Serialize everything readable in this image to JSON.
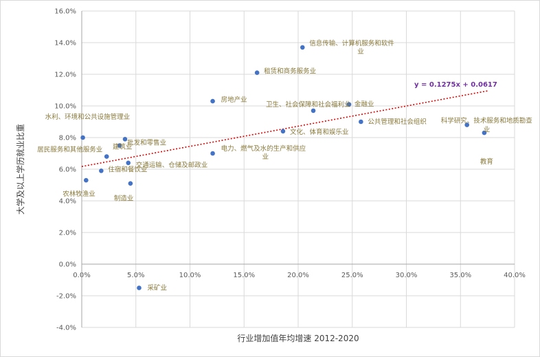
{
  "chart_data": {
    "type": "scatter",
    "title": "",
    "xlabel": "行业增加值年均增速 2012-2020",
    "ylabel": "大学及以上学历就业比重",
    "xlim": [
      0.0,
      0.4
    ],
    "ylim": [
      -0.04,
      0.16
    ],
    "x_ticks": [
      0.0,
      0.05,
      0.1,
      0.15,
      0.2,
      0.25,
      0.3,
      0.35,
      0.4
    ],
    "x_tick_labels": [
      "0.0%",
      "5.0%",
      "10.0%",
      "15.0%",
      "20.0%",
      "25.0%",
      "30.0%",
      "35.0%",
      "40.0%"
    ],
    "y_ticks": [
      -0.04,
      -0.02,
      0.0,
      0.02,
      0.04,
      0.06,
      0.08,
      0.1,
      0.12,
      0.14,
      0.16
    ],
    "y_tick_labels": [
      "-4.0%",
      "-2.0%",
      "0.0%",
      "2.0%",
      "4.0%",
      "6.0%",
      "8.0%",
      "10.0%",
      "12.0%",
      "14.0%",
      "16.0%"
    ],
    "grid": true,
    "legend": "none",
    "point_color": "#4472c4",
    "trendline": {
      "slope": 0.1275,
      "intercept": 0.0617,
      "x_range": [
        0.0,
        0.375
      ],
      "equation": "y = 0.1275x + 0.0617",
      "color": "#e00000"
    },
    "points": [
      {
        "label": "信息传输、计算机服务和软件业",
        "x": 0.204,
        "y": 0.137
      },
      {
        "label": "租赁和商务服务业",
        "x": 0.162,
        "y": 0.121
      },
      {
        "label": "房地产业",
        "x": 0.121,
        "y": 0.103
      },
      {
        "label": "卫生、社会保障和社会福利业",
        "x": 0.214,
        "y": 0.097
      },
      {
        "label": "金融业",
        "x": 0.247,
        "y": 0.101
      },
      {
        "label": "公共管理和社会组织",
        "x": 0.258,
        "y": 0.09
      },
      {
        "label": "科学研究、技术服务和地质勘查业",
        "x": 0.356,
        "y": 0.088
      },
      {
        "label": "教育",
        "x": 0.372,
        "y": 0.083
      },
      {
        "label": "文化、体育和娱乐业",
        "x": 0.186,
        "y": 0.084
      },
      {
        "label": "电力、燃气及水的生产和供应业",
        "x": 0.121,
        "y": 0.07
      },
      {
        "label": "水利、环境和公共设施管理业",
        "x": 0.001,
        "y": 0.08
      },
      {
        "label": "建筑业",
        "x": 0.04,
        "y": 0.079
      },
      {
        "label": "批发和零售业",
        "x": 0.035,
        "y": 0.075
      },
      {
        "label": "居民服务和其他服务业",
        "x": 0.023,
        "y": 0.068
      },
      {
        "label": "交通运输、仓储及邮政业",
        "x": 0.043,
        "y": 0.064
      },
      {
        "label": "住宿和餐饮业",
        "x": 0.018,
        "y": 0.059
      },
      {
        "label": "农林牧渔业",
        "x": 0.004,
        "y": 0.053
      },
      {
        "label": "制造业",
        "x": 0.045,
        "y": 0.051
      },
      {
        "label": "采矿业",
        "x": 0.053,
        "y": -0.015
      }
    ]
  }
}
